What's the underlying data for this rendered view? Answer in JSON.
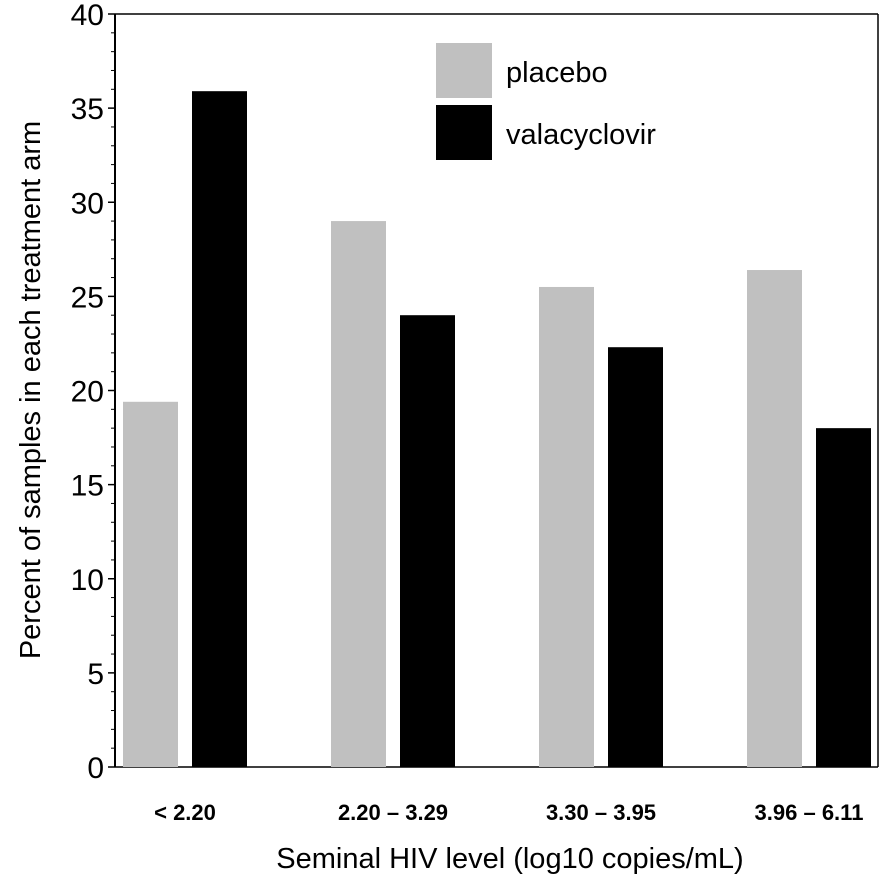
{
  "chart_data": {
    "type": "bar",
    "title": "",
    "xlabel": "Seminal HIV level (log10 copies/mL)",
    "ylabel": "Percent of samples in each treatment arm",
    "categories": [
      "< 2.20",
      "2.20 – 3.29",
      "3.30 – 3.95",
      "3.96 – 6.11"
    ],
    "series": [
      {
        "name": "placebo",
        "values": [
          19.4,
          29.0,
          25.5,
          26.4
        ],
        "color": "#c0c0c0"
      },
      {
        "name": "valacyclovir",
        "values": [
          35.9,
          24.0,
          22.3,
          18.0
        ],
        "color": "#000000"
      }
    ],
    "ylim": [
      0,
      40
    ],
    "yticks": [
      "0",
      "5",
      "10",
      "15",
      "20",
      "25",
      "30",
      "35",
      "40"
    ],
    "grid": false,
    "legend_position": "top-right"
  }
}
